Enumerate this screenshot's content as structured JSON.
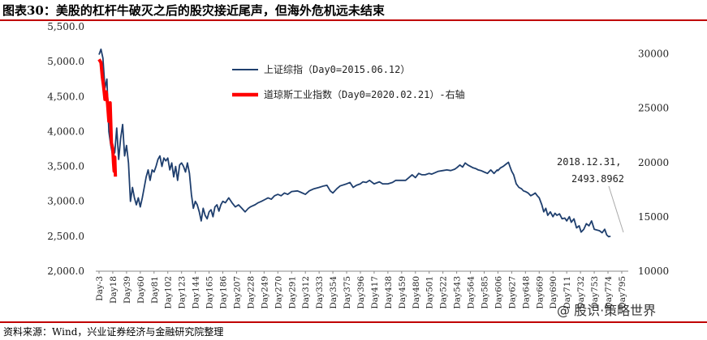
{
  "header": {
    "title": "图表30：美股的杠杆牛破灭之后的股灾接近尾声，但海外危机远未结束"
  },
  "footer": {
    "source": "资料来源：Wind，兴业证券经济与金融研究院整理",
    "watermark": "@ 股识·策略世界"
  },
  "colors": {
    "shanghai": "#1f3f6e",
    "dow": "#ff0000",
    "rule": "#c00000"
  },
  "chart_data": {
    "type": "line",
    "title": "美股的杠杆牛破灭之后的股灾接近尾声，但海外危机远未结束",
    "categories": [
      "Day-3",
      "Day18",
      "Day39",
      "Day60",
      "Day81",
      "Day102",
      "Day123",
      "Day144",
      "Day165",
      "Day186",
      "Day207",
      "Day228",
      "Day249",
      "Day270",
      "Day291",
      "Day312",
      "Day333",
      "Day354",
      "Day375",
      "Day396",
      "Day417",
      "Day438",
      "Day459",
      "Day480",
      "Day501",
      "Day522",
      "Day543",
      "Day564",
      "Day585",
      "Day606",
      "Day627",
      "Day648",
      "Day669",
      "Day690",
      "Day711",
      "Day732",
      "Day753",
      "Day774",
      "Day795"
    ],
    "x_range": [
      -3,
      800
    ],
    "y_left": {
      "ticks": [
        "5,500.0",
        "5,000.0",
        "4,500.0",
        "4,000.0",
        "3,500.0",
        "3,000.0",
        "2,500.0",
        "2,000.0"
      ],
      "range": [
        2000,
        5500
      ]
    },
    "y_right": {
      "ticks": [
        "30000",
        "25000",
        "20000",
        "15000",
        "10000"
      ],
      "range": [
        10000,
        32500
      ]
    },
    "series": [
      {
        "name": "上证综指（Day0=2015.06.12）",
        "axis": "left",
        "points": [
          [
            -3,
            5100
          ],
          [
            0,
            5178
          ],
          [
            3,
            5050
          ],
          [
            6,
            4620
          ],
          [
            9,
            4750
          ],
          [
            12,
            4000
          ],
          [
            15,
            3800
          ],
          [
            18,
            3650
          ],
          [
            21,
            3700
          ],
          [
            24,
            4050
          ],
          [
            27,
            3600
          ],
          [
            30,
            3900
          ],
          [
            33,
            4100
          ],
          [
            36,
            3650
          ],
          [
            39,
            3800
          ],
          [
            42,
            3550
          ],
          [
            45,
            3000
          ],
          [
            48,
            3200
          ],
          [
            51,
            3050
          ],
          [
            54,
            2950
          ],
          [
            57,
            3050
          ],
          [
            60,
            2920
          ],
          [
            63,
            3050
          ],
          [
            66,
            3200
          ],
          [
            69,
            3350
          ],
          [
            72,
            3450
          ],
          [
            75,
            3300
          ],
          [
            78,
            3450
          ],
          [
            81,
            3420
          ],
          [
            84,
            3500
          ],
          [
            87,
            3600
          ],
          [
            90,
            3650
          ],
          [
            93,
            3500
          ],
          [
            96,
            3620
          ],
          [
            99,
            3580
          ],
          [
            102,
            3620
          ],
          [
            105,
            3450
          ],
          [
            108,
            3550
          ],
          [
            111,
            3350
          ],
          [
            114,
            3500
          ],
          [
            117,
            3300
          ],
          [
            120,
            3520
          ],
          [
            123,
            3550
          ],
          [
            126,
            3500
          ],
          [
            129,
            3420
          ],
          [
            132,
            3550
          ],
          [
            135,
            3400
          ],
          [
            138,
            3100
          ],
          [
            141,
            2900
          ],
          [
            144,
            3000
          ],
          [
            147,
            2950
          ],
          [
            150,
            2850
          ],
          [
            153,
            2720
          ],
          [
            156,
            2900
          ],
          [
            159,
            2800
          ],
          [
            162,
            2750
          ],
          [
            165,
            2850
          ],
          [
            168,
            2880
          ],
          [
            171,
            2780
          ],
          [
            174,
            2920
          ],
          [
            177,
            2950
          ],
          [
            180,
            2860
          ],
          [
            183,
            2950
          ],
          [
            186,
            3000
          ],
          [
            190,
            2980
          ],
          [
            195,
            3050
          ],
          [
            200,
            2980
          ],
          [
            205,
            2920
          ],
          [
            210,
            2950
          ],
          [
            215,
            2900
          ],
          [
            220,
            2850
          ],
          [
            225,
            2900
          ],
          [
            228,
            2920
          ],
          [
            235,
            2950
          ],
          [
            240,
            2980
          ],
          [
            245,
            3000
          ],
          [
            249,
            3020
          ],
          [
            255,
            3050
          ],
          [
            260,
            3030
          ],
          [
            265,
            3080
          ],
          [
            270,
            3100
          ],
          [
            275,
            3080
          ],
          [
            280,
            3120
          ],
          [
            285,
            3100
          ],
          [
            291,
            3140
          ],
          [
            300,
            3150
          ],
          [
            305,
            3130
          ],
          [
            312,
            3100
          ],
          [
            318,
            3150
          ],
          [
            325,
            3180
          ],
          [
            333,
            3200
          ],
          [
            340,
            3220
          ],
          [
            345,
            3230
          ],
          [
            350,
            3150
          ],
          [
            354,
            3120
          ],
          [
            360,
            3180
          ],
          [
            365,
            3220
          ],
          [
            375,
            3250
          ],
          [
            380,
            3270
          ],
          [
            385,
            3200
          ],
          [
            390,
            3230
          ],
          [
            396,
            3250
          ],
          [
            400,
            3280
          ],
          [
            405,
            3270
          ],
          [
            410,
            3300
          ],
          [
            417,
            3250
          ],
          [
            425,
            3280
          ],
          [
            430,
            3250
          ],
          [
            438,
            3250
          ],
          [
            445,
            3270
          ],
          [
            450,
            3300
          ],
          [
            459,
            3300
          ],
          [
            465,
            3300
          ],
          [
            470,
            3340
          ],
          [
            475,
            3380
          ],
          [
            480,
            3340
          ],
          [
            485,
            3400
          ],
          [
            490,
            3380
          ],
          [
            495,
            3380
          ],
          [
            501,
            3400
          ],
          [
            505,
            3390
          ],
          [
            510,
            3410
          ],
          [
            515,
            3430
          ],
          [
            522,
            3440
          ],
          [
            528,
            3450
          ],
          [
            534,
            3440
          ],
          [
            540,
            3460
          ],
          [
            543,
            3480
          ],
          [
            548,
            3520
          ],
          [
            552,
            3490
          ],
          [
            556,
            3550
          ],
          [
            560,
            3520
          ],
          [
            564,
            3500
          ],
          [
            568,
            3480
          ],
          [
            572,
            3470
          ],
          [
            576,
            3450
          ],
          [
            580,
            3440
          ],
          [
            585,
            3420
          ],
          [
            590,
            3400
          ],
          [
            595,
            3450
          ],
          [
            600,
            3400
          ],
          [
            605,
            3450
          ],
          [
            606,
            3440
          ],
          [
            610,
            3480
          ],
          [
            614,
            3500
          ],
          [
            618,
            3530
          ],
          [
            622,
            3559
          ],
          [
            625,
            3480
          ],
          [
            627,
            3430
          ],
          [
            630,
            3380
          ],
          [
            634,
            3250
          ],
          [
            638,
            3200
          ],
          [
            642,
            3180
          ],
          [
            645,
            3150
          ],
          [
            648,
            3140
          ],
          [
            652,
            3120
          ],
          [
            656,
            3080
          ],
          [
            660,
            3100
          ],
          [
            663,
            3120
          ],
          [
            666,
            3080
          ],
          [
            669,
            3050
          ],
          [
            673,
            2950
          ],
          [
            676,
            2850
          ],
          [
            679,
            2900
          ],
          [
            682,
            2800
          ],
          [
            686,
            2850
          ],
          [
            690,
            2780
          ],
          [
            693,
            2830
          ],
          [
            696,
            2800
          ],
          [
            700,
            2820
          ],
          [
            704,
            2750
          ],
          [
            708,
            2760
          ],
          [
            711,
            2720
          ],
          [
            715,
            2780
          ],
          [
            718,
            2700
          ],
          [
            722,
            2750
          ],
          [
            726,
            2620
          ],
          [
            730,
            2650
          ],
          [
            733,
            2560
          ],
          [
            737,
            2600
          ],
          [
            741,
            2680
          ],
          [
            745,
            2650
          ],
          [
            749,
            2720
          ],
          [
            753,
            2600
          ],
          [
            757,
            2590
          ],
          [
            761,
            2580
          ],
          [
            765,
            2550
          ],
          [
            769,
            2600
          ],
          [
            772,
            2520
          ],
          [
            775,
            2494
          ],
          [
            778,
            2500
          ]
        ]
      },
      {
        "name": "道琼斯工业指数（Day0=2020.02.21）-右轴",
        "axis": "right",
        "points": [
          [
            -3,
            29500
          ],
          [
            0,
            29200
          ],
          [
            2,
            27900
          ],
          [
            4,
            27000
          ],
          [
            6,
            25800
          ],
          [
            8,
            26500
          ],
          [
            10,
            25400
          ],
          [
            12,
            23800
          ],
          [
            14,
            25500
          ],
          [
            16,
            21800
          ],
          [
            18,
            21300
          ],
          [
            19,
            20000
          ],
          [
            20,
            19200
          ],
          [
            21,
            20500
          ],
          [
            22,
            18700
          ]
        ]
      }
    ],
    "annotations": [
      {
        "text": "2018.12.31,",
        "text2": "2493.8962",
        "x": 775,
        "y": 2494,
        "axis": "left"
      }
    ],
    "legend": "top-center"
  }
}
